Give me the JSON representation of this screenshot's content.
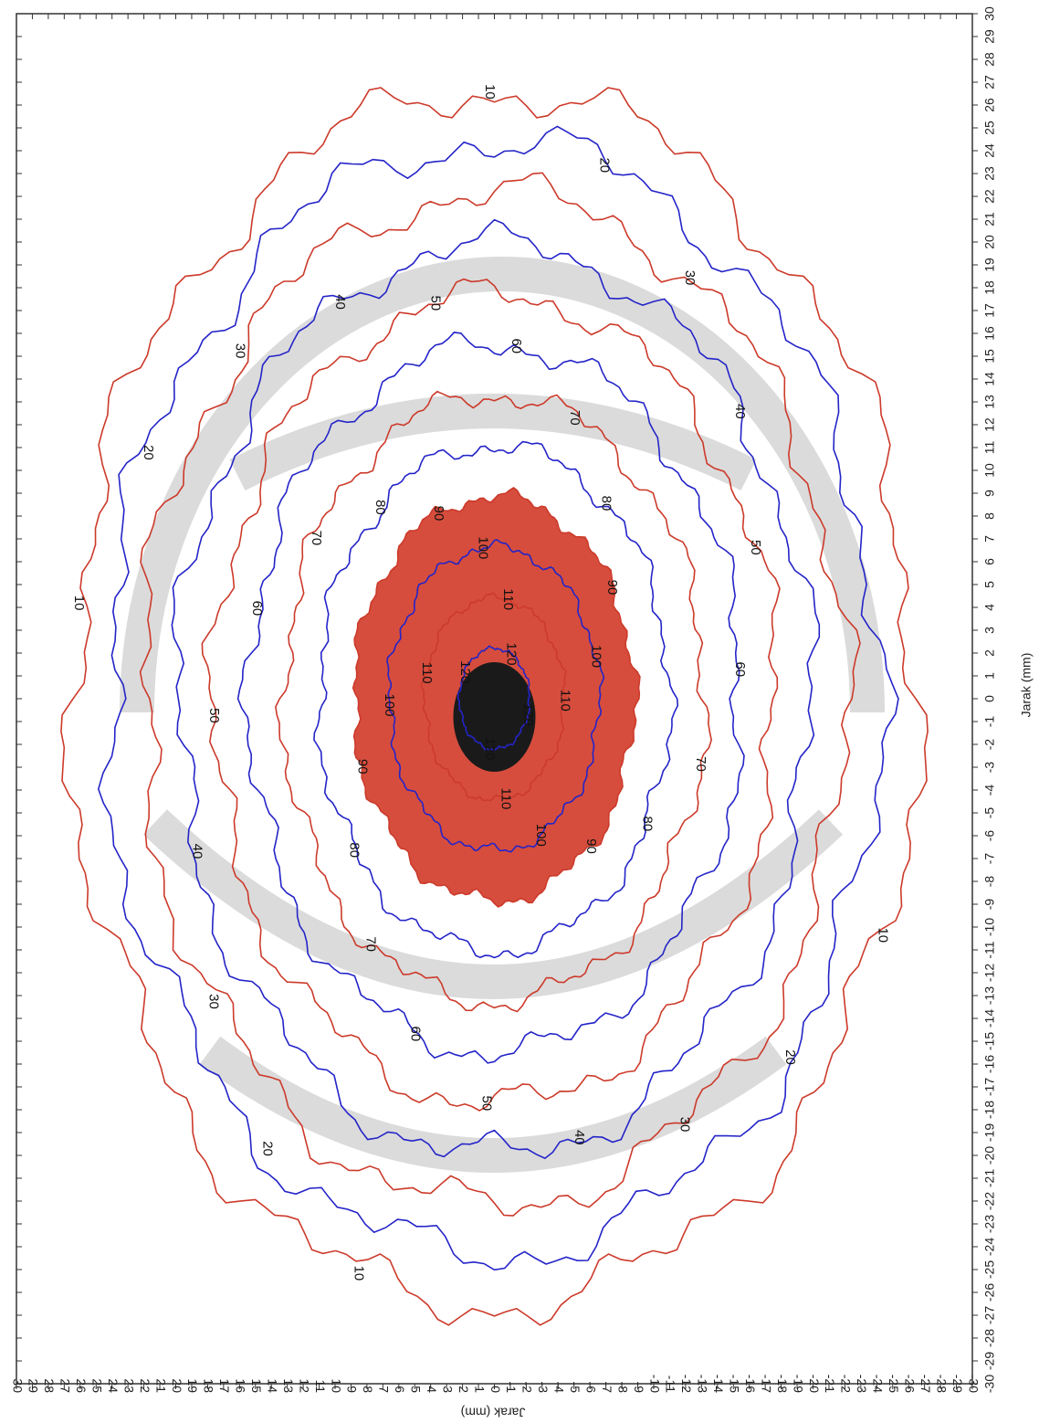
{
  "chart_data": {
    "type": "contour",
    "x_label": "Jarak (mm)",
    "y_label": "Jarak (mm)",
    "xlim": [
      -30,
      30
    ],
    "ylim": [
      -30,
      30
    ],
    "xticks": [
      -30,
      -29,
      -28,
      -27,
      -26,
      -25,
      -24,
      -23,
      -22,
      -21,
      -20,
      -19,
      -18,
      -17,
      -16,
      -15,
      -14,
      -13,
      -12,
      -11,
      -10,
      -9,
      -8,
      -7,
      -6,
      -5,
      -4,
      -3,
      -2,
      -1,
      0,
      1,
      2,
      3,
      4,
      5,
      6,
      7,
      8,
      9,
      10,
      11,
      12,
      13,
      14,
      15,
      16,
      17,
      18,
      19,
      20,
      21,
      22,
      23,
      24,
      25,
      26,
      27,
      28,
      29,
      30
    ],
    "yticks": [
      -30,
      -29,
      -28,
      -27,
      -26,
      -25,
      -24,
      -23,
      -22,
      -21,
      -20,
      -19,
      -18,
      -17,
      -16,
      -15,
      -14,
      -13,
      -12,
      -11,
      -10,
      -9,
      -8,
      -7,
      -6,
      -5,
      -4,
      -3,
      -2,
      -1,
      0,
      1,
      2,
      3,
      4,
      5,
      6,
      7,
      8,
      9,
      10,
      11,
      12,
      13,
      14,
      15,
      16,
      17,
      18,
      19,
      20,
      21,
      22,
      23,
      24,
      25,
      26,
      27,
      28,
      29,
      30
    ],
    "levels": [
      10,
      20,
      30,
      40,
      50,
      60,
      70,
      80,
      90,
      100,
      110,
      120
    ],
    "colors": [
      "#cc3a2a",
      "#2424c8"
    ],
    "core_color": "#d23a28"
  }
}
